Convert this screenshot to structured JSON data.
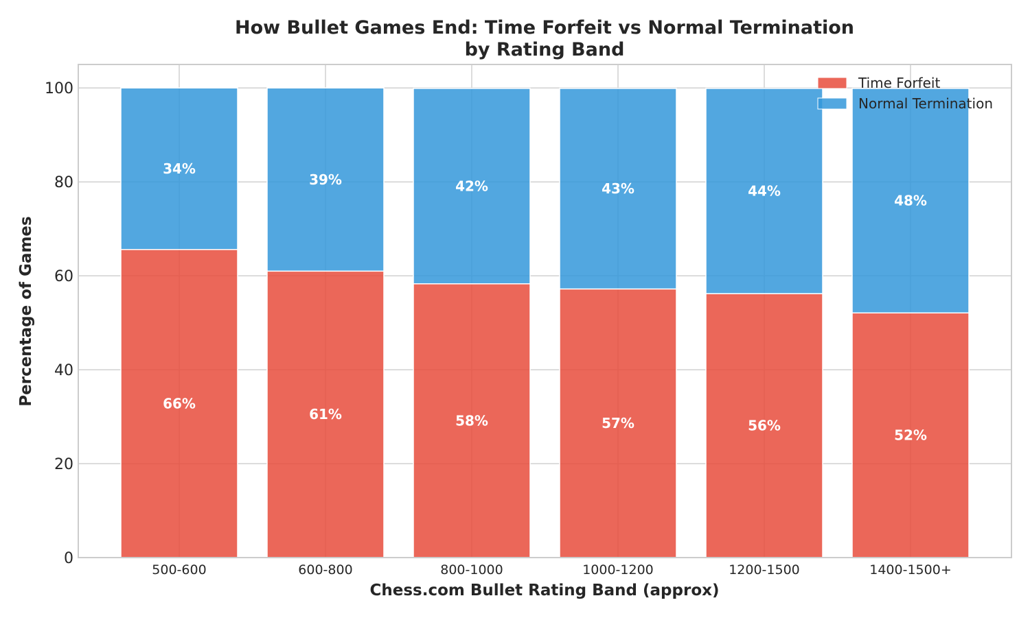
{
  "chart_data": {
    "type": "bar",
    "stacked": true,
    "title": "How Bullet Games End: Time Forfeit vs Normal Termination",
    "subtitle": "by Rating Band",
    "xlabel": "Chess.com Bullet Rating Band (approx)",
    "ylabel": "Percentage of Games",
    "ylim": [
      0,
      105
    ],
    "yticks": [
      0,
      20,
      40,
      60,
      80,
      100
    ],
    "grid": true,
    "legend_position": "top-right",
    "categories": [
      "500-600",
      "600-800",
      "800-1000",
      "1000-1200",
      "1200-1500",
      "1400-1500+"
    ],
    "series": [
      {
        "name": "Time Forfeit",
        "color": "#e74c3c",
        "values": [
          65.6,
          61.0,
          58.3,
          57.2,
          56.2,
          52.1
        ],
        "labels": [
          "66%",
          "61%",
          "58%",
          "57%",
          "56%",
          "52%"
        ]
      },
      {
        "name": "Normal Termination",
        "color": "#3498db",
        "values": [
          34.4,
          39.0,
          41.6,
          42.7,
          43.7,
          47.8
        ],
        "labels": [
          "34%",
          "39%",
          "42%",
          "43%",
          "44%",
          "48%"
        ]
      }
    ]
  }
}
